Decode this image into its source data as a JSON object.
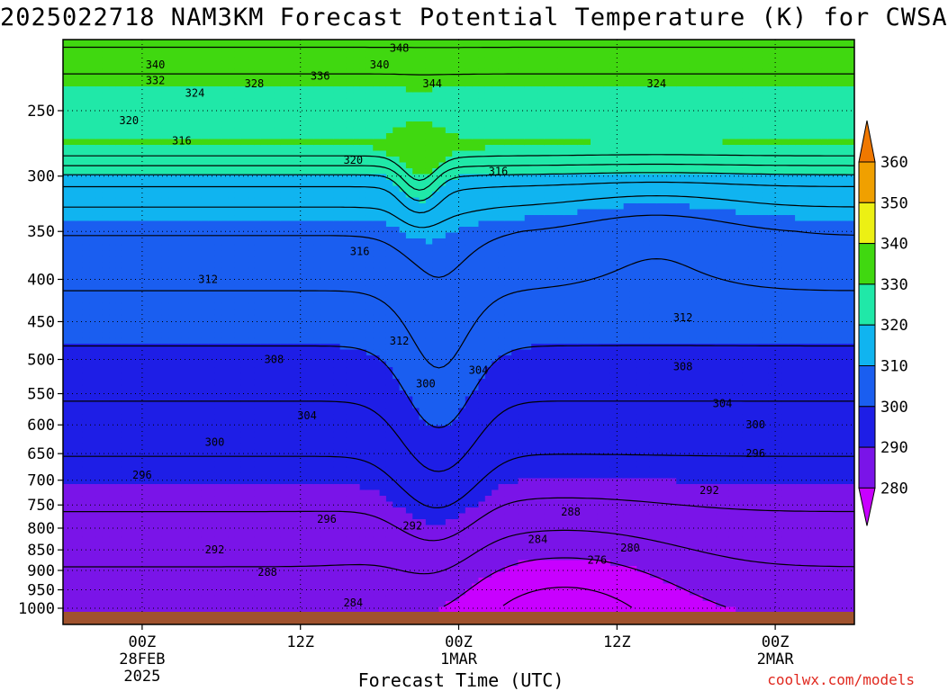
{
  "title": "2025022718 NAM3KM Forecast Potential Temperature (K) for CWSA",
  "credit": "coolwx.com/models",
  "chart_data": {
    "type": "area",
    "title": "2025022718 NAM3KM Forecast Potential Temperature (K) for CWSA",
    "xlabel": "Forecast Time (UTC)",
    "ylabel": "",
    "x_ticks": [
      {
        "hour": 6,
        "label": [
          "00Z",
          "28FEB",
          "2025"
        ]
      },
      {
        "hour": 18,
        "label": [
          "12Z"
        ]
      },
      {
        "hour": 30,
        "label": [
          "00Z",
          "1MAR"
        ]
      },
      {
        "hour": 42,
        "label": [
          "12Z"
        ]
      },
      {
        "hour": 54,
        "label": [
          "00Z",
          "2MAR"
        ]
      }
    ],
    "xlim": [
      0,
      60
    ],
    "y_scale": "log-pressure",
    "ylim": [
      1000,
      200
    ],
    "y_ticks": [
      250,
      300,
      350,
      400,
      450,
      500,
      550,
      600,
      650,
      700,
      750,
      800,
      850,
      900,
      950,
      1000
    ],
    "grid": "dotted",
    "colorbar": {
      "levels": [
        280,
        290,
        300,
        310,
        320,
        330,
        340,
        350,
        360
      ],
      "colors": [
        "#c800ff",
        "#7a14e8",
        "#1e1ee6",
        "#1a5ef0",
        "#10b4f0",
        "#20e8a8",
        "#40d810",
        "#ecf014",
        "#f0a000",
        "#f07800"
      ]
    },
    "contour_levels": [
      276,
      280,
      284,
      288,
      292,
      296,
      300,
      304,
      308,
      312,
      316,
      320,
      324,
      328,
      332,
      336,
      340,
      344,
      348
    ],
    "contour_labels": [
      {
        "value": "348",
        "hour": 25.5,
        "p": 210
      },
      {
        "value": "340",
        "hour": 7,
        "p": 220
      },
      {
        "value": "340",
        "hour": 24,
        "p": 220
      },
      {
        "value": "332",
        "hour": 7,
        "p": 230
      },
      {
        "value": "336",
        "hour": 19.5,
        "p": 227
      },
      {
        "value": "344",
        "hour": 28,
        "p": 232
      },
      {
        "value": "324",
        "hour": 10,
        "p": 238
      },
      {
        "value": "328",
        "hour": 14.5,
        "p": 232
      },
      {
        "value": "324",
        "hour": 45,
        "p": 232
      },
      {
        "value": "320",
        "hour": 5,
        "p": 257
      },
      {
        "value": "316",
        "hour": 9,
        "p": 272
      },
      {
        "value": "320",
        "hour": 22,
        "p": 287
      },
      {
        "value": "316",
        "hour": 33,
        "p": 296
      },
      {
        "value": "316",
        "hour": 22.5,
        "p": 370
      },
      {
        "value": "312",
        "hour": 11,
        "p": 400
      },
      {
        "value": "312",
        "hour": 47,
        "p": 445
      },
      {
        "value": "312",
        "hour": 25.5,
        "p": 475
      },
      {
        "value": "308",
        "hour": 16,
        "p": 500
      },
      {
        "value": "308",
        "hour": 47,
        "p": 510
      },
      {
        "value": "304",
        "hour": 31.5,
        "p": 515
      },
      {
        "value": "300",
        "hour": 27.5,
        "p": 535
      },
      {
        "value": "304",
        "hour": 18.5,
        "p": 585
      },
      {
        "value": "304",
        "hour": 50,
        "p": 565
      },
      {
        "value": "300",
        "hour": 11.5,
        "p": 630
      },
      {
        "value": "300",
        "hour": 52.5,
        "p": 600
      },
      {
        "value": "296",
        "hour": 6,
        "p": 690
      },
      {
        "value": "296",
        "hour": 52.5,
        "p": 650
      },
      {
        "value": "292",
        "hour": 49,
        "p": 720
      },
      {
        "value": "296",
        "hour": 20,
        "p": 780
      },
      {
        "value": "292",
        "hour": 26.5,
        "p": 795
      },
      {
        "value": "288",
        "hour": 38.5,
        "p": 765
      },
      {
        "value": "284",
        "hour": 36,
        "p": 825
      },
      {
        "value": "292",
        "hour": 11.5,
        "p": 850
      },
      {
        "value": "280",
        "hour": 43,
        "p": 845
      },
      {
        "value": "276",
        "hour": 40.5,
        "p": 875
      },
      {
        "value": "288",
        "hour": 15.5,
        "p": 905
      },
      {
        "value": "284",
        "hour": 22,
        "p": 985
      }
    ]
  }
}
